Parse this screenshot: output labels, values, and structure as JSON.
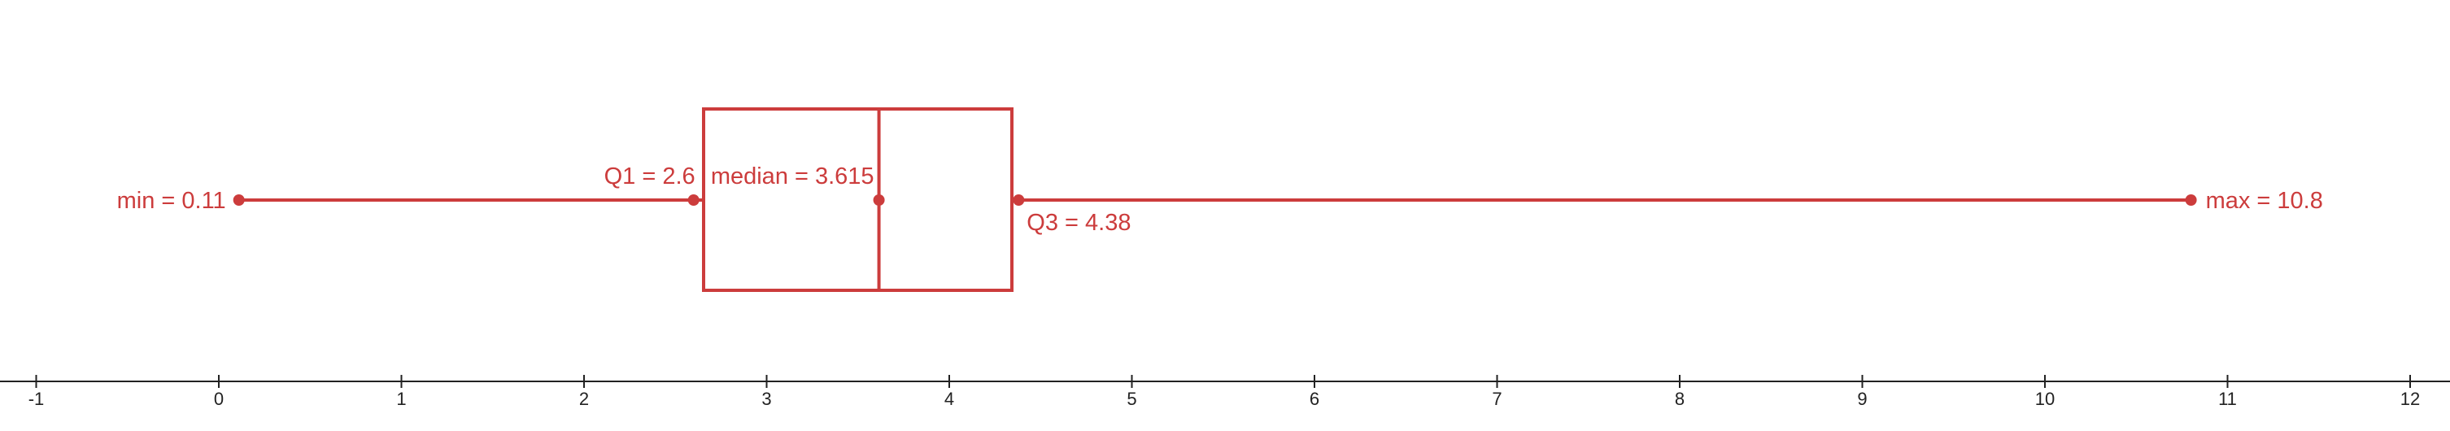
{
  "chart_data": {
    "type": "boxplot",
    "title": "",
    "xlabel": "",
    "ylabel": "",
    "xlim": [
      -1,
      12
    ],
    "x_ticks": [
      -1,
      0,
      1,
      2,
      3,
      4,
      5,
      6,
      7,
      8,
      9,
      10,
      11,
      12
    ],
    "grid": false,
    "color": "#cc3c3c",
    "summary": {
      "min": 0.11,
      "q1": 2.6,
      "median": 3.615,
      "q3": 4.38,
      "max": 10.8
    },
    "labels": {
      "min": "min = 0.11",
      "q1": "Q1 = 2.6",
      "median": "median = 3.615",
      "q3": "Q3 = 4.38",
      "max": "max = 10.8"
    }
  }
}
